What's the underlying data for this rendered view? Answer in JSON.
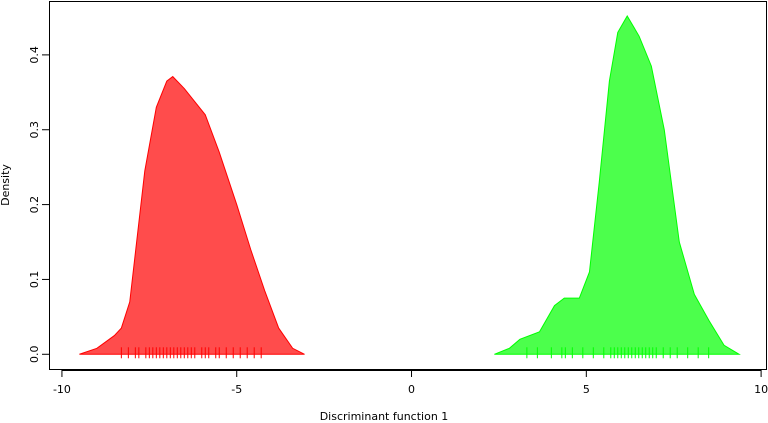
{
  "chart_data": {
    "type": "density",
    "xlabel": "Discriminant function 1",
    "ylabel": "Density",
    "xlim": [
      -10.37,
      10.14
    ],
    "ylim": [
      -0.021,
      0.472
    ],
    "xticks": [
      -10,
      -5,
      0,
      5,
      10
    ],
    "yticks": [
      {
        "value": 0,
        "label": "0.0"
      },
      0.1,
      0.2,
      0.3,
      0.4
    ],
    "series": [
      {
        "color": "#ff0000",
        "x": [
          -9.5,
          -9.0,
          -8.5,
          -8.3,
          -8.06,
          -7.63,
          -7.3,
          -7.0,
          -6.83,
          -6.5,
          -5.9,
          -5.5,
          -5.0,
          -4.6,
          -4.2,
          -3.8,
          -3.4,
          -3.06
        ],
        "values": [
          0.0,
          0.008,
          0.025,
          0.035,
          0.07,
          0.245,
          0.33,
          0.365,
          0.371,
          0.355,
          0.32,
          0.27,
          0.2,
          0.14,
          0.085,
          0.035,
          0.008,
          0.0
        ],
        "rug": [
          -8.3,
          -8.1,
          -7.9,
          -7.8,
          -7.6,
          -7.5,
          -7.4,
          -7.3,
          -7.2,
          -7.1,
          -7.0,
          -6.9,
          -6.8,
          -6.7,
          -6.6,
          -6.5,
          -6.4,
          -6.3,
          -6.2,
          -6.0,
          -5.9,
          -5.8,
          -5.6,
          -5.5,
          -5.3,
          -5.1,
          -4.9,
          -4.7,
          -4.5,
          -4.3
        ]
      },
      {
        "color": "#00ff00",
        "x": [
          2.37,
          2.8,
          3.1,
          3.66,
          4.09,
          4.37,
          4.8,
          5.09,
          5.37,
          5.66,
          5.9,
          6.17,
          6.51,
          6.86,
          7.23,
          7.66,
          8.09,
          8.51,
          8.94,
          9.37
        ],
        "values": [
          0.0,
          0.008,
          0.02,
          0.03,
          0.065,
          0.075,
          0.075,
          0.11,
          0.23,
          0.365,
          0.43,
          0.452,
          0.425,
          0.385,
          0.3,
          0.15,
          0.08,
          0.045,
          0.012,
          0.0
        ],
        "rug": [
          3.3,
          3.6,
          4.0,
          4.3,
          4.4,
          4.6,
          4.9,
          5.2,
          5.5,
          5.7,
          5.8,
          5.9,
          6.0,
          6.1,
          6.2,
          6.3,
          6.4,
          6.5,
          6.6,
          6.7,
          6.8,
          6.9,
          7.0,
          7.2,
          7.4,
          7.6,
          7.9,
          8.2,
          8.5
        ]
      }
    ]
  }
}
